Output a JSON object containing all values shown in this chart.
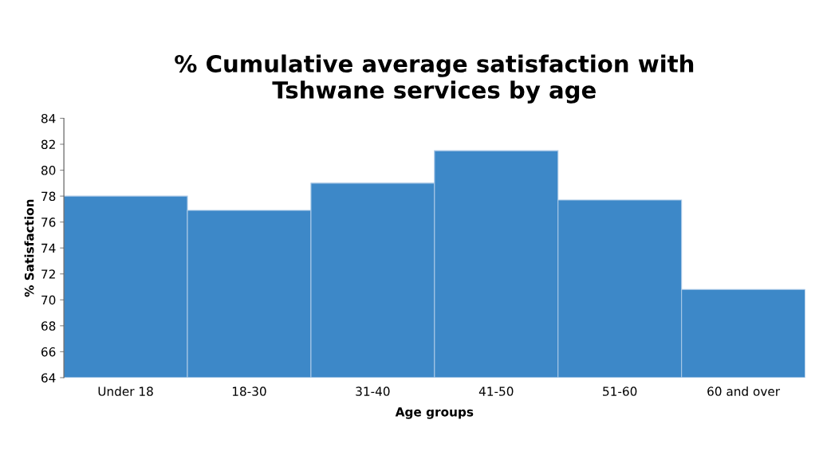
{
  "chart_data": {
    "type": "bar",
    "title": "% Cumulative average satisfaction with\nTshwane services by age",
    "xlabel": "Age groups",
    "ylabel": "% Satisfaction",
    "categories": [
      "Under 18",
      "18-30",
      "31-40",
      "41-50",
      "51-60",
      "60 and over"
    ],
    "values": [
      78.0,
      76.9,
      79.0,
      81.5,
      77.7,
      70.8
    ],
    "color": "#3d88c8",
    "ylim": [
      64,
      84
    ],
    "yticks": [
      64,
      66,
      68,
      70,
      72,
      74,
      76,
      78,
      80,
      82,
      84
    ],
    "grid": false,
    "legend": false
  }
}
